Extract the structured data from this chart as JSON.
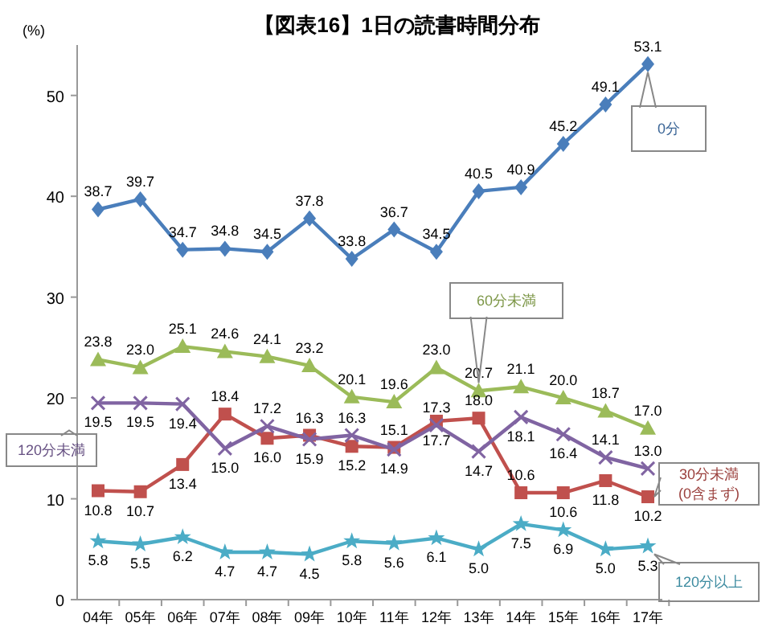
{
  "chart_data": {
    "type": "line",
    "title": "【図表16】1日の読書時間分布",
    "ylabel": "(%)",
    "categories": [
      "04年",
      "05年",
      "06年",
      "07年",
      "08年",
      "09年",
      "10年",
      "11年",
      "12年",
      "13年",
      "14年",
      "15年",
      "16年",
      "17年"
    ],
    "ylim": [
      0,
      55
    ],
    "yticks": [
      0,
      10,
      20,
      30,
      40,
      50
    ],
    "grid": false,
    "legend": false,
    "data_labels": true,
    "series": [
      {
        "name": "0分",
        "color": "#4a7ebb",
        "marker": "diamond",
        "values": [
          38.7,
          39.7,
          34.7,
          34.8,
          34.5,
          37.8,
          33.8,
          36.7,
          34.5,
          40.5,
          40.9,
          45.2,
          49.1,
          53.1
        ],
        "value_labels": [
          "38.7",
          "39.7",
          "34.7",
          "34.8",
          "34.5",
          "37.8",
          "33.8",
          "36.7",
          "34.5",
          "40.5",
          "40.9",
          "45.2",
          "49.1",
          "53.1"
        ]
      },
      {
        "name": "60分未満",
        "color": "#9bbb59",
        "marker": "triangle",
        "values": [
          23.8,
          23.0,
          25.1,
          24.6,
          24.1,
          23.2,
          20.1,
          19.6,
          23.0,
          20.7,
          21.1,
          20.0,
          18.7,
          17.0
        ],
        "value_labels": [
          "23.8",
          "23.0",
          "25.1",
          "24.6",
          "24.1",
          "23.2",
          "20.1",
          "19.6",
          "23.0",
          "20.7",
          "21.1",
          "20.0",
          "18.7",
          "17.0"
        ]
      },
      {
        "name": "30分未満\n(0含まず)",
        "color": "#c0504d",
        "marker": "square",
        "values": [
          10.8,
          10.7,
          13.4,
          18.4,
          16.0,
          16.3,
          15.2,
          15.1,
          17.7,
          18.0,
          10.6,
          10.6,
          11.8,
          10.2
        ],
        "value_labels": [
          "10.8",
          "10.7",
          "13.4",
          "18.4",
          "16.0",
          "16.3",
          "15.2",
          "15.1",
          "17.7",
          "18.0",
          "10.6",
          "10.6",
          "11.8",
          "10.2"
        ]
      },
      {
        "name": "120分未満",
        "color": "#8064a2",
        "marker": "cross",
        "values": [
          19.5,
          19.5,
          19.4,
          15.0,
          17.2,
          15.9,
          16.3,
          14.9,
          17.3,
          14.7,
          18.1,
          16.4,
          14.1,
          13.0
        ],
        "value_labels": [
          "19.5",
          "19.5",
          "19.4",
          "15.0",
          "17.2",
          "15.9",
          "16.3",
          "14.9",
          "17.3",
          "14.7",
          "18.1",
          "16.4",
          "14.1",
          "13.0"
        ]
      },
      {
        "name": "120分以上",
        "color": "#4bacc6",
        "marker": "star",
        "values": [
          5.8,
          5.5,
          6.2,
          4.7,
          4.7,
          4.5,
          5.8,
          5.6,
          6.1,
          5.0,
          7.5,
          6.9,
          5.0,
          5.3
        ],
        "value_labels": [
          "5.8",
          "5.5",
          "6.2",
          "4.7",
          "4.7",
          "4.5",
          "5.8",
          "5.6",
          "6.1",
          "5.0",
          "7.5",
          "6.9",
          "5.0",
          "5.3"
        ]
      }
    ]
  }
}
